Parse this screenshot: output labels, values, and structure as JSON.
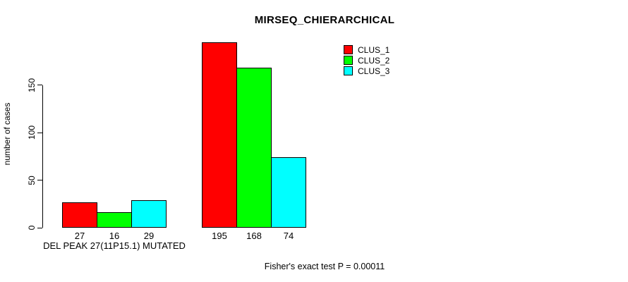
{
  "title": "MIRSEQ_CHIERARCHICAL",
  "footer": "Fisher's exact test P = 0.00011",
  "chart_data": {
    "type": "bar",
    "title": "MIRSEQ_CHIERARCHICAL",
    "ylabel": "number of cases",
    "xlabel": "",
    "categories": [
      "DEL PEAK 27(11P15.1) MUTATED",
      ""
    ],
    "series": [
      {
        "name": "CLUS_1",
        "color": "#ff0000",
        "values": [
          27,
          195
        ]
      },
      {
        "name": "CLUS_2",
        "color": "#00ff00",
        "values": [
          16,
          168
        ]
      },
      {
        "name": "CLUS_3",
        "color": "#00ffff",
        "values": [
          29,
          74
        ]
      }
    ],
    "yticks": [
      0,
      50,
      100,
      150
    ],
    "ylim": [
      0,
      200
    ],
    "grid": false,
    "bar_value_labels_shown": true,
    "legend_position": "top-right",
    "annotation": "Fisher's exact test P = 0.00011"
  }
}
